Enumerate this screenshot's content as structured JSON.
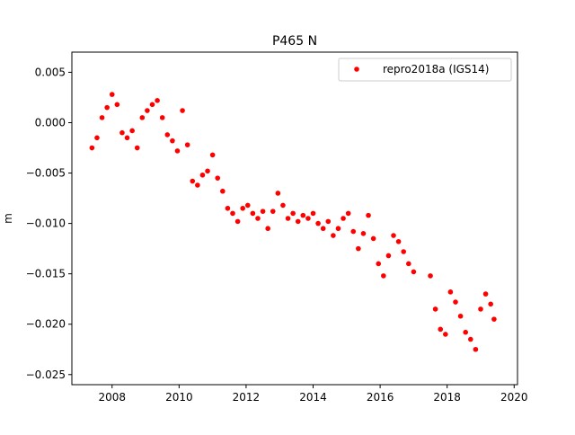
{
  "chart_data": {
    "type": "scatter",
    "title": "P465 N",
    "xlabel": "",
    "ylabel": "m",
    "xlim": [
      2006.8,
      2020.1
    ],
    "ylim": [
      -0.026,
      0.007
    ],
    "xticks": [
      2008,
      2010,
      2012,
      2014,
      2016,
      2018,
      2020
    ],
    "xtick_labels": [
      "2008",
      "2010",
      "2012",
      "2014",
      "2016",
      "2018",
      "2020"
    ],
    "yticks": [
      0.005,
      0.0,
      -0.005,
      -0.01,
      -0.015,
      -0.02,
      -0.025
    ],
    "ytick_labels": [
      "0.005",
      "0.000",
      "−0.005",
      "−0.010",
      "−0.015",
      "−0.020",
      "−0.025"
    ],
    "grid": false,
    "legend_position": "top-right",
    "series": [
      {
        "name": "repro2018a (IGS14)",
        "color": "#ff0000",
        "marker": "circle",
        "x": [
          2007.4,
          2007.55,
          2007.7,
          2007.85,
          2008.0,
          2008.15,
          2008.3,
          2008.45,
          2008.6,
          2008.75,
          2008.9,
          2009.05,
          2009.2,
          2009.35,
          2009.5,
          2009.65,
          2009.8,
          2009.95,
          2010.1,
          2010.25,
          2010.4,
          2010.55,
          2010.7,
          2010.85,
          2011.0,
          2011.15,
          2011.3,
          2011.45,
          2011.6,
          2011.75,
          2011.9,
          2012.05,
          2012.2,
          2012.35,
          2012.5,
          2012.65,
          2012.8,
          2012.95,
          2013.1,
          2013.25,
          2013.4,
          2013.55,
          2013.7,
          2013.85,
          2014.0,
          2014.15,
          2014.3,
          2014.45,
          2014.6,
          2014.75,
          2014.9,
          2015.05,
          2015.2,
          2015.35,
          2015.5,
          2015.65,
          2015.8,
          2015.95,
          2016.1,
          2016.25,
          2016.4,
          2016.55,
          2016.7,
          2016.85,
          2017.0,
          2017.5,
          2017.65,
          2017.8,
          2017.95,
          2018.1,
          2018.25,
          2018.4,
          2018.55,
          2018.7,
          2018.85,
          2019.0,
          2019.15,
          2019.3,
          2019.4
        ],
        "y": [
          -0.0025,
          -0.0015,
          0.0005,
          0.0015,
          0.0028,
          0.0018,
          -0.001,
          -0.0015,
          -0.0008,
          -0.0025,
          0.0005,
          0.0012,
          0.0018,
          0.0022,
          0.0005,
          -0.0012,
          -0.0018,
          -0.0028,
          0.0012,
          -0.0022,
          -0.0058,
          -0.0062,
          -0.0052,
          -0.0048,
          -0.0032,
          -0.0055,
          -0.0068,
          -0.0085,
          -0.009,
          -0.0098,
          -0.0085,
          -0.0082,
          -0.009,
          -0.0095,
          -0.0088,
          -0.0105,
          -0.0088,
          -0.007,
          -0.0082,
          -0.0095,
          -0.009,
          -0.0098,
          -0.0092,
          -0.0095,
          -0.009,
          -0.01,
          -0.0105,
          -0.0098,
          -0.0112,
          -0.0105,
          -0.0095,
          -0.009,
          -0.0108,
          -0.0125,
          -0.011,
          -0.0092,
          -0.0115,
          -0.014,
          -0.0152,
          -0.0132,
          -0.0112,
          -0.0118,
          -0.0128,
          -0.014,
          -0.0148,
          -0.0152,
          -0.0185,
          -0.0205,
          -0.021,
          -0.0168,
          -0.0178,
          -0.0192,
          -0.0208,
          -0.0215,
          -0.0225,
          -0.0185,
          -0.017,
          -0.018,
          -0.0195
        ]
      }
    ]
  }
}
